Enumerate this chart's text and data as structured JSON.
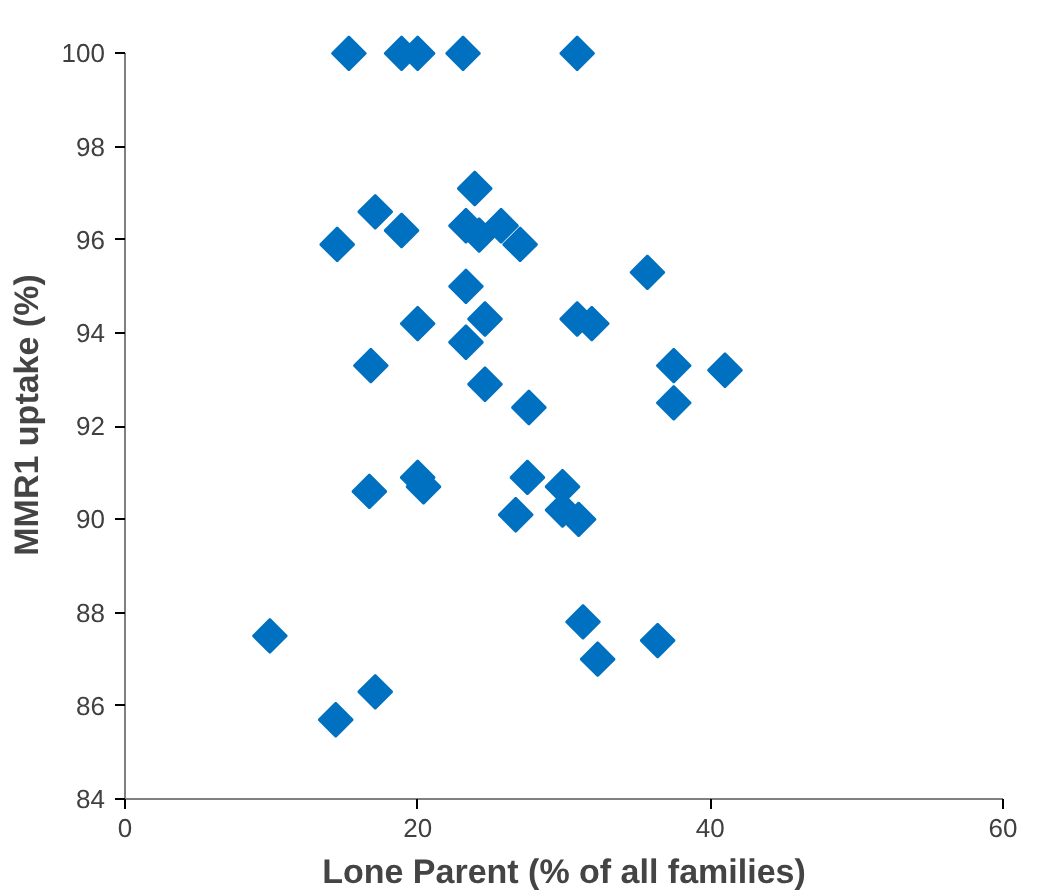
{
  "chart_data": {
    "type": "scatter",
    "xlabel": "Lone Parent (% of all families)",
    "ylabel": "MMR1 uptake (%)",
    "marker": "diamond",
    "grid": false,
    "xlim": [
      0,
      60
    ],
    "ylim": [
      84,
      100
    ],
    "xticks": [
      0,
      20,
      40,
      60
    ],
    "yticks": [
      84,
      86,
      88,
      90,
      92,
      94,
      96,
      98,
      100
    ],
    "series": [
      {
        "color": "#0070c0",
        "x": [
          15.3,
          18.9,
          20.0,
          23.1,
          30.9,
          23.9,
          17.1,
          18.9,
          14.5,
          23.3,
          24.2,
          25.7,
          27.0,
          35.7,
          23.3,
          20.0,
          24.6,
          30.9,
          31.9,
          23.3,
          16.8,
          24.6,
          37.5,
          41.0,
          37.5,
          27.6,
          16.7,
          20.0,
          20.4,
          27.5,
          26.7,
          9.9,
          17.1,
          14.4,
          29.9,
          29.9,
          31.0,
          31.3,
          32.3,
          36.4
        ],
        "values": [
          100,
          100,
          100,
          100,
          100,
          97.1,
          96.6,
          96.2,
          95.9,
          96.3,
          96.1,
          96.3,
          95.9,
          95.3,
          95.0,
          94.2,
          94.3,
          94.3,
          94.2,
          93.8,
          93.3,
          92.9,
          93.3,
          93.2,
          92.5,
          92.4,
          90.6,
          90.9,
          90.7,
          90.9,
          90.1,
          87.5,
          86.3,
          85.7,
          90.7,
          90.2,
          90.0,
          87.8,
          87.0,
          87.4
        ]
      }
    ]
  }
}
